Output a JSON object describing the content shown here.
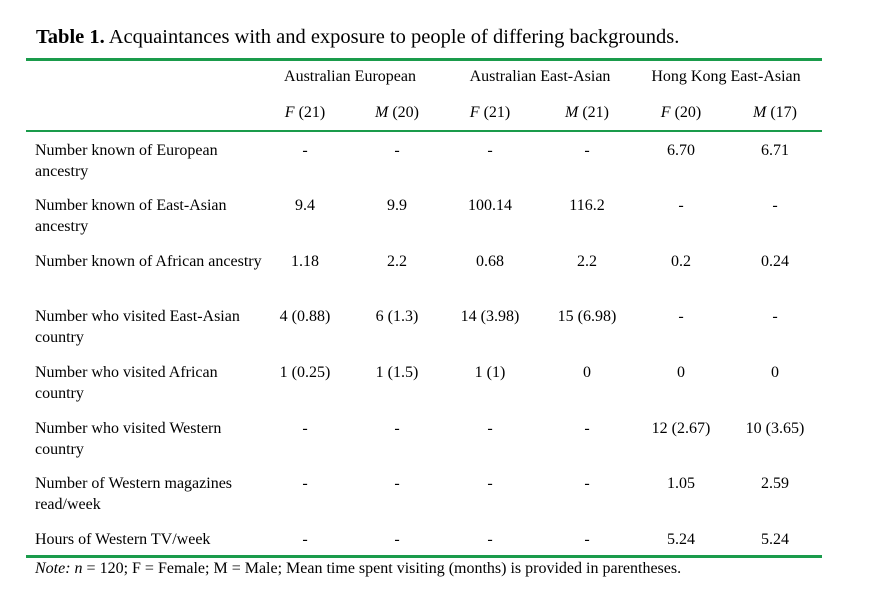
{
  "caption": {
    "label": "Table 1.",
    "text": "Acquaintances with and exposure to people of differing backgrounds."
  },
  "groups": [
    "Australian European",
    "Australian East-Asian",
    "Hong Kong East-Asian"
  ],
  "subheads": [
    {
      "sex": "F",
      "n": "(21)"
    },
    {
      "sex": "M",
      "n": "(20)"
    },
    {
      "sex": "F",
      "n": "(21)"
    },
    {
      "sex": "M",
      "n": "(21)"
    },
    {
      "sex": "F",
      "n": "(20)"
    },
    {
      "sex": "M",
      "n": "(17)"
    }
  ],
  "rows": [
    {
      "label": "Number known of European ancestry",
      "values": [
        "-",
        "-",
        "-",
        "-",
        "6.70",
        "6.71"
      ]
    },
    {
      "label": "Number known of East-Asian ancestry",
      "values": [
        "9.4",
        "9.9",
        "100.14",
        "116.2",
        "-",
        "-"
      ]
    },
    {
      "label": "Number known of African ancestry",
      "values": [
        "1.18",
        "2.2",
        "0.68",
        "2.2",
        "0.2",
        "0.24"
      ]
    },
    {
      "label": "Number who visited East-Asian country",
      "values": [
        "4 (0.88)",
        "6 (1.3)",
        "14 (3.98)",
        "15 (6.98)",
        "-",
        "-"
      ]
    },
    {
      "label": "Number who visited African country",
      "values": [
        "1 (0.25)",
        "1 (1.5)",
        "1 (1)",
        "0",
        "0",
        "0"
      ]
    },
    {
      "label": "Number who visited Western country",
      "values": [
        "-",
        "-",
        "-",
        "-",
        "12 (2.67)",
        "10 (3.65)"
      ]
    },
    {
      "label": "Number of Western magazines read/week",
      "values": [
        "-",
        "-",
        "-",
        "-",
        "1.05",
        "2.59"
      ]
    },
    {
      "label": "Hours of Western TV/week",
      "values": [
        "-",
        "-",
        "-",
        "-",
        "5.24",
        "5.24"
      ]
    }
  ],
  "note": {
    "label": "Note:",
    "n_symbol": "n",
    "text": " = 120; F = Female; M = Male; Mean time spent visiting (months) is provided in parentheses."
  },
  "colors": {
    "rule": "#1a9b4b"
  }
}
